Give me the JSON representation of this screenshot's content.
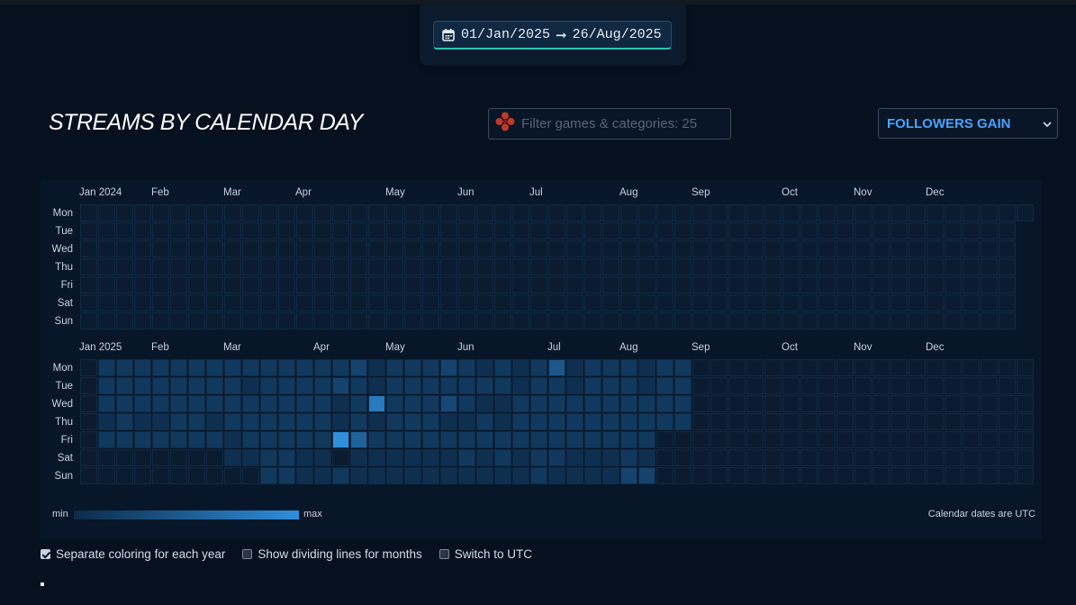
{
  "date_range": {
    "start": "01/Jan/2025",
    "end": "26/Aug/2025",
    "arrow": "➞"
  },
  "title": "STREAMS BY CALENDAR DAY",
  "filter": {
    "placeholder": "Filter games & categories: 25",
    "value": ""
  },
  "metric": {
    "selected": "FOLLOWERS GAIN"
  },
  "colors": {
    "page_bg": "#05111f",
    "panel_bg": "#071628",
    "empty_cell": "#0b1c30",
    "cell_border": "#102a44",
    "scale_min": "#0c2a48",
    "scale_max": "#2f8fdd",
    "accent": "#4aa3ff",
    "date_underline": "#27c4b0"
  },
  "weekdays": [
    "Mon",
    "Tue",
    "Wed",
    "Thu",
    "Fri",
    "Sat",
    "Sun"
  ],
  "years": [
    {
      "year": 2024,
      "month_labels": [
        "Jan 2024",
        "Feb",
        "Mar",
        "Apr",
        "May",
        "Jun",
        "Jul",
        "Aug",
        "Sep",
        "Oct",
        "Nov",
        "Dec"
      ],
      "month_start_weeks": [
        0,
        4,
        8,
        12,
        17,
        21,
        25,
        30,
        34,
        39,
        43,
        47
      ],
      "weeks": 53,
      "blank_before_first": 0,
      "blank_after_last": [
        "53:2",
        "53:3",
        "53:4",
        "53:5",
        "53:6",
        "53:7"
      ],
      "activity": [
        [
          52,
          1,
          0.35
        ]
      ]
    },
    {
      "year": 2025,
      "month_labels": [
        "Jan 2025",
        "Feb",
        "Mar",
        "Apr",
        "May",
        "Jun",
        "Jul",
        "Aug",
        "Sep",
        "Oct",
        "Nov",
        "Dec"
      ],
      "month_start_weeks": [
        0,
        4,
        8,
        13,
        17,
        21,
        26,
        30,
        34,
        39,
        43,
        47
      ],
      "weeks": 53,
      "activity": [
        [
          1,
          0,
          0.15
        ],
        [
          2,
          0,
          0.15
        ],
        [
          3,
          0,
          0.15
        ],
        [
          4,
          0,
          0.15
        ],
        [
          5,
          0,
          0.15
        ],
        [
          6,
          0,
          0.15
        ],
        [
          7,
          0,
          0.15
        ],
        [
          8,
          0,
          0.15
        ],
        [
          9,
          0,
          0.15
        ],
        [
          10,
          0,
          0.15
        ],
        [
          11,
          0,
          0.15
        ],
        [
          12,
          0,
          0.15
        ],
        [
          13,
          0,
          0.15
        ],
        [
          14,
          0,
          0.15
        ],
        [
          15,
          0,
          0.25
        ],
        [
          16,
          0,
          0.05
        ],
        [
          17,
          0,
          0.15
        ],
        [
          18,
          0,
          0.15
        ],
        [
          19,
          0,
          0.15
        ],
        [
          20,
          0,
          0.25
        ],
        [
          21,
          0,
          0.15
        ],
        [
          22,
          0,
          0.05
        ],
        [
          23,
          0,
          0.15
        ],
        [
          24,
          0,
          0.05
        ],
        [
          25,
          0,
          0.15
        ],
        [
          26,
          0,
          0.45
        ],
        [
          27,
          0,
          0.05
        ],
        [
          28,
          0,
          0.15
        ],
        [
          29,
          0,
          0.15
        ],
        [
          30,
          0,
          0.15
        ],
        [
          31,
          0,
          0.05
        ],
        [
          32,
          0,
          0.15
        ],
        [
          33,
          0,
          0.15
        ],
        [
          1,
          1,
          0.15
        ],
        [
          2,
          1,
          0.15
        ],
        [
          3,
          1,
          0.15
        ],
        [
          4,
          1,
          0.15
        ],
        [
          5,
          1,
          0.15
        ],
        [
          6,
          1,
          0.15
        ],
        [
          7,
          1,
          0.15
        ],
        [
          8,
          1,
          0.15
        ],
        [
          9,
          1,
          0.05
        ],
        [
          10,
          1,
          0.15
        ],
        [
          11,
          1,
          0.15
        ],
        [
          12,
          1,
          0.15
        ],
        [
          13,
          1,
          0.15
        ],
        [
          14,
          1,
          0.25
        ],
        [
          15,
          1,
          0.15
        ],
        [
          16,
          1,
          0.05
        ],
        [
          17,
          1,
          0.15
        ],
        [
          18,
          1,
          0.15
        ],
        [
          19,
          1,
          0.15
        ],
        [
          20,
          1,
          0.15
        ],
        [
          21,
          1,
          0.15
        ],
        [
          22,
          1,
          0.15
        ],
        [
          23,
          1,
          0.15
        ],
        [
          24,
          1,
          0.05
        ],
        [
          25,
          1,
          0.15
        ],
        [
          26,
          1,
          0.15
        ],
        [
          27,
          1,
          0.05
        ],
        [
          28,
          1,
          0.15
        ],
        [
          29,
          1,
          0.15
        ],
        [
          30,
          1,
          0.15
        ],
        [
          31,
          1,
          0.05
        ],
        [
          32,
          1,
          0.15
        ],
        [
          33,
          1,
          0.15
        ],
        [
          1,
          2,
          0.15
        ],
        [
          2,
          2,
          0.15
        ],
        [
          3,
          2,
          0.15
        ],
        [
          4,
          2,
          0.15
        ],
        [
          5,
          2,
          0.15
        ],
        [
          6,
          2,
          0.15
        ],
        [
          7,
          2,
          0.15
        ],
        [
          8,
          2,
          0.15
        ],
        [
          9,
          2,
          0.15
        ],
        [
          10,
          2,
          0.15
        ],
        [
          11,
          2,
          0.15
        ],
        [
          12,
          2,
          0.15
        ],
        [
          13,
          2,
          0.15
        ],
        [
          14,
          2,
          0.05
        ],
        [
          15,
          2,
          0.15
        ],
        [
          16,
          2,
          0.8
        ],
        [
          17,
          2,
          0.15
        ],
        [
          18,
          2,
          0.15
        ],
        [
          19,
          2,
          0.15
        ],
        [
          20,
          2,
          0.3
        ],
        [
          21,
          2,
          0.15
        ],
        [
          22,
          2,
          0.05
        ],
        [
          23,
          2,
          0.05
        ],
        [
          24,
          2,
          0.15
        ],
        [
          25,
          2,
          0.15
        ],
        [
          26,
          2,
          0.15
        ],
        [
          27,
          2,
          0.15
        ],
        [
          28,
          2,
          0.15
        ],
        [
          29,
          2,
          0.15
        ],
        [
          30,
          2,
          0.15
        ],
        [
          31,
          2,
          0.15
        ],
        [
          32,
          2,
          0.15
        ],
        [
          33,
          2,
          0.15
        ],
        [
          1,
          3,
          0.05
        ],
        [
          2,
          3,
          0.15
        ],
        [
          3,
          3,
          0.05
        ],
        [
          4,
          3,
          0.05
        ],
        [
          5,
          3,
          0.15
        ],
        [
          6,
          3,
          0.15
        ],
        [
          7,
          3,
          0.05
        ],
        [
          8,
          3,
          0.15
        ],
        [
          9,
          3,
          0.15
        ],
        [
          10,
          3,
          0.15
        ],
        [
          11,
          3,
          0.15
        ],
        [
          12,
          3,
          0.15
        ],
        [
          13,
          3,
          0.15
        ],
        [
          14,
          3,
          0.05
        ],
        [
          15,
          3,
          0.15
        ],
        [
          16,
          3,
          0.05
        ],
        [
          17,
          3,
          0.15
        ],
        [
          18,
          3,
          0.15
        ],
        [
          19,
          3,
          0.15
        ],
        [
          20,
          3,
          0.05
        ],
        [
          21,
          3,
          0.05
        ],
        [
          22,
          3,
          0.15
        ],
        [
          23,
          3,
          0.05
        ],
        [
          24,
          3,
          0.15
        ],
        [
          25,
          3,
          0.15
        ],
        [
          26,
          3,
          0.15
        ],
        [
          27,
          3,
          0.15
        ],
        [
          28,
          3,
          0.15
        ],
        [
          29,
          3,
          0.15
        ],
        [
          30,
          3,
          0.15
        ],
        [
          31,
          3,
          0.15
        ],
        [
          32,
          3,
          0.15
        ],
        [
          33,
          3,
          0.15
        ],
        [
          1,
          4,
          0.15
        ],
        [
          2,
          4,
          0.15
        ],
        [
          3,
          4,
          0.15
        ],
        [
          4,
          4,
          0.15
        ],
        [
          5,
          4,
          0.15
        ],
        [
          6,
          4,
          0.15
        ],
        [
          7,
          4,
          0.15
        ],
        [
          8,
          4,
          0.05
        ],
        [
          9,
          4,
          0.15
        ],
        [
          10,
          4,
          0.15
        ],
        [
          11,
          4,
          0.15
        ],
        [
          12,
          4,
          0.15
        ],
        [
          13,
          4,
          0.15
        ],
        [
          14,
          4,
          1.0
        ],
        [
          15,
          4,
          0.55
        ],
        [
          16,
          4,
          0.15
        ],
        [
          17,
          4,
          0.15
        ],
        [
          18,
          4,
          0.15
        ],
        [
          19,
          4,
          0.15
        ],
        [
          20,
          4,
          0.15
        ],
        [
          21,
          4,
          0.15
        ],
        [
          22,
          4,
          0.15
        ],
        [
          23,
          4,
          0.15
        ],
        [
          24,
          4,
          0.15
        ],
        [
          25,
          4,
          0.15
        ],
        [
          26,
          4,
          0.15
        ],
        [
          27,
          4,
          0.15
        ],
        [
          28,
          4,
          0.15
        ],
        [
          29,
          4,
          0.15
        ],
        [
          30,
          4,
          0.15
        ],
        [
          31,
          4,
          0.15
        ],
        [
          8,
          5,
          0.05
        ],
        [
          9,
          5,
          0.05
        ],
        [
          10,
          5,
          0.15
        ],
        [
          11,
          5,
          0.15
        ],
        [
          12,
          5,
          0.05
        ],
        [
          13,
          5,
          0.05
        ],
        [
          15,
          5,
          0.05
        ],
        [
          16,
          5,
          0.05
        ],
        [
          17,
          5,
          0.05
        ],
        [
          18,
          5,
          0.05
        ],
        [
          19,
          5,
          0.05
        ],
        [
          20,
          5,
          0.05
        ],
        [
          21,
          5,
          0.15
        ],
        [
          22,
          5,
          0.05
        ],
        [
          23,
          5,
          0.15
        ],
        [
          24,
          5,
          0.05
        ],
        [
          25,
          5,
          0.15
        ],
        [
          26,
          5,
          0.15
        ],
        [
          27,
          5,
          0.05
        ],
        [
          28,
          5,
          0.05
        ],
        [
          29,
          5,
          0.05
        ],
        [
          30,
          5,
          0.15
        ],
        [
          31,
          5,
          0.05
        ],
        [
          10,
          6,
          0.15
        ],
        [
          11,
          6,
          0.15
        ],
        [
          12,
          6,
          0.05
        ],
        [
          13,
          6,
          0.05
        ],
        [
          14,
          6,
          0.15
        ],
        [
          15,
          6,
          0.05
        ],
        [
          16,
          6,
          0.05
        ],
        [
          17,
          6,
          0.05
        ],
        [
          18,
          6,
          0.05
        ],
        [
          19,
          6,
          0.05
        ],
        [
          20,
          6,
          0.05
        ],
        [
          21,
          6,
          0.05
        ],
        [
          22,
          6,
          0.05
        ],
        [
          23,
          6,
          0.05
        ],
        [
          24,
          6,
          0.05
        ],
        [
          25,
          6,
          0.15
        ],
        [
          26,
          6,
          0.05
        ],
        [
          27,
          6,
          0.05
        ],
        [
          28,
          6,
          0.05
        ],
        [
          29,
          6,
          0.05
        ],
        [
          30,
          6,
          0.25
        ],
        [
          31,
          6,
          0.25
        ]
      ]
    }
  ],
  "legend": {
    "min": "min",
    "max": "max"
  },
  "note": "Calendar dates are UTC",
  "options": [
    {
      "label": "Separate coloring for each year",
      "checked": true
    },
    {
      "label": "Show dividing lines for months",
      "checked": false
    },
    {
      "label": "Switch to UTC",
      "checked": false
    }
  ]
}
